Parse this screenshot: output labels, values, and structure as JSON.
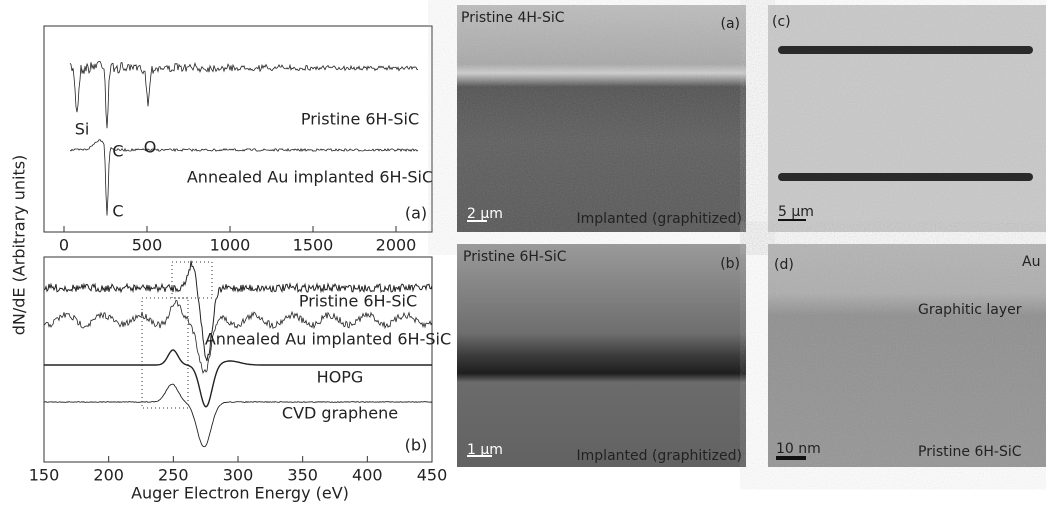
{
  "spectra": {
    "y_label": "dN/dE (Arbitrary units)",
    "x_label": "Auger Electron Energy (eV)",
    "top_panel": {
      "tag": "(a)",
      "xticks": [
        0,
        500,
        1000,
        1500,
        2000
      ],
      "labels": [
        "Pristine 6H-SiC",
        "Si",
        "C",
        "O",
        "Annealed Au implanted 6H-SiC",
        "C"
      ]
    },
    "bottom_panel": {
      "tag": "(b)",
      "xticks": [
        150,
        200,
        250,
        300,
        350,
        400,
        450
      ],
      "labels": [
        "Pristine 6H-SiC",
        "Annealed Au implanted 6H-SiC",
        "HOPG",
        "CVD graphene"
      ]
    }
  },
  "images": [
    {
      "tag": "(a)",
      "top_label": "Pristine 4H-SiC",
      "bottom_label": "Implanted (graphitized)",
      "scale": "2 µm"
    },
    {
      "tag": "(b)",
      "top_label": "Pristine 6H-SiC",
      "bottom_label": "Implanted (graphitized)",
      "scale": "1 µm"
    },
    {
      "tag": "(c)",
      "scale": "5 µm"
    },
    {
      "tag": "(d)",
      "top_label": "Au",
      "middle_label": "Graphitic layer",
      "bottom_label": "Pristine 6H-SiC",
      "scale": "10 nm"
    }
  ]
}
